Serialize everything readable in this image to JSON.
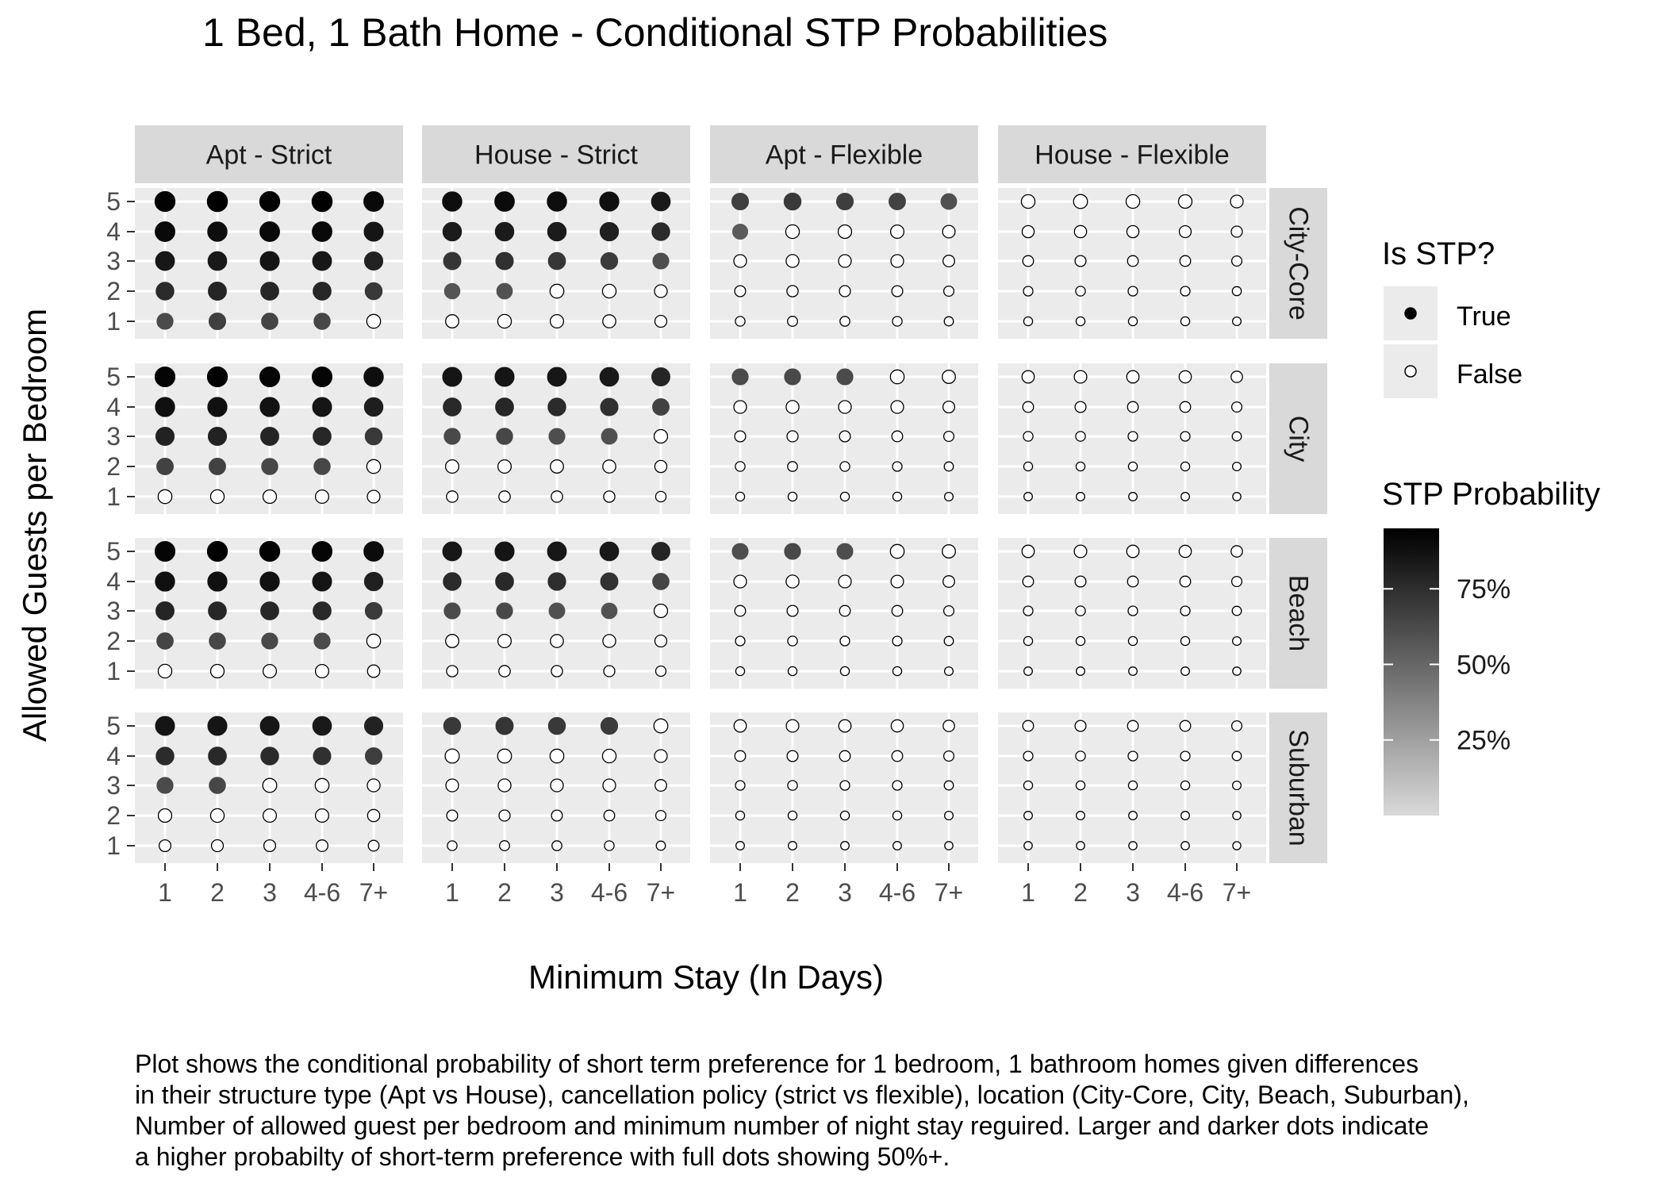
{
  "chart_data": {
    "type": "scatter",
    "title": "1 Bed, 1 Bath Home - Conditional STP Probabilities",
    "xlabel": "Minimum Stay  (In Days)",
    "ylabel": "Allowed Guests per Bedroom",
    "x_categories": [
      "1",
      "2",
      "3",
      "4-6",
      "7+"
    ],
    "y_categories": [
      "1",
      "2",
      "3",
      "4",
      "5"
    ],
    "facet_columns": [
      "Apt - Strict",
      "House - Strict",
      "Apt - Flexible",
      "House - Flexible"
    ],
    "facet_rows": [
      "City-Core",
      "City",
      "Beach",
      "Suburban"
    ],
    "legend_shape": {
      "title": "Is STP?",
      "items": [
        {
          "label": "True",
          "filled": true
        },
        {
          "label": "False",
          "filled": false
        }
      ]
    },
    "legend_color": {
      "title": "STP Probability",
      "ticks": [
        "25%",
        "50%",
        "75%"
      ],
      "tick_values": [
        0.25,
        0.5,
        0.75
      ],
      "range": [
        0.0,
        0.95
      ],
      "low_color": "#d9d9d9",
      "high_color": "#000000"
    },
    "threshold": 0.5,
    "panel_background": "#ebebeb",
    "strip_background": "#d9d9d9",
    "grid": true,
    "legend_position": "right",
    "probabilities": [
      [
        [
          [
            0.62,
            0.67,
            0.65,
            0.64,
            0.46
          ],
          [
            0.76,
            0.79,
            0.78,
            0.78,
            0.7
          ],
          [
            0.85,
            0.84,
            0.86,
            0.85,
            0.8
          ],
          [
            0.91,
            0.89,
            0.91,
            0.91,
            0.86
          ],
          [
            0.94,
            0.95,
            0.94,
            0.95,
            0.91
          ]
        ],
        [
          [
            0.41,
            0.45,
            0.42,
            0.4,
            0.31
          ],
          [
            0.58,
            0.59,
            0.46,
            0.45,
            0.37
          ],
          [
            0.72,
            0.74,
            0.71,
            0.69,
            0.61
          ],
          [
            0.83,
            0.83,
            0.83,
            0.81,
            0.76
          ],
          [
            0.89,
            0.9,
            0.89,
            0.88,
            0.84
          ]
        ],
        [
          [
            0.14,
            0.16,
            0.15,
            0.14,
            0.1
          ],
          [
            0.24,
            0.26,
            0.25,
            0.24,
            0.17
          ],
          [
            0.38,
            0.39,
            0.38,
            0.37,
            0.29
          ],
          [
            0.55,
            0.45,
            0.44,
            0.43,
            0.36
          ],
          [
            0.67,
            0.7,
            0.68,
            0.66,
            0.6
          ]
        ],
        [
          [
            0.07,
            0.08,
            0.08,
            0.07,
            0.05
          ],
          [
            0.13,
            0.14,
            0.13,
            0.12,
            0.09
          ],
          [
            0.23,
            0.24,
            0.23,
            0.22,
            0.17
          ],
          [
            0.33,
            0.34,
            0.33,
            0.31,
            0.25
          ],
          [
            0.45,
            0.47,
            0.45,
            0.44,
            0.38
          ]
        ]
      ],
      [
        [
          [
            0.46,
            0.45,
            0.44,
            0.43,
            0.37
          ],
          [
            0.66,
            0.66,
            0.64,
            0.64,
            0.46
          ],
          [
            0.8,
            0.8,
            0.79,
            0.78,
            0.7
          ],
          [
            0.88,
            0.88,
            0.87,
            0.86,
            0.82
          ],
          [
            0.93,
            0.94,
            0.93,
            0.93,
            0.89
          ]
        ],
        [
          [
            0.27,
            0.28,
            0.27,
            0.26,
            0.2
          ],
          [
            0.42,
            0.43,
            0.41,
            0.4,
            0.32
          ],
          [
            0.63,
            0.64,
            0.61,
            0.6,
            0.44
          ],
          [
            0.77,
            0.78,
            0.76,
            0.74,
            0.66
          ],
          [
            0.86,
            0.86,
            0.85,
            0.84,
            0.79
          ]
        ],
        [
          [
            0.07,
            0.08,
            0.07,
            0.07,
            0.05
          ],
          [
            0.14,
            0.15,
            0.14,
            0.13,
            0.1
          ],
          [
            0.24,
            0.25,
            0.24,
            0.23,
            0.17
          ],
          [
            0.38,
            0.39,
            0.38,
            0.37,
            0.3
          ],
          [
            0.62,
            0.63,
            0.62,
            0.46,
            0.41
          ]
        ],
        [
          [
            0.04,
            0.04,
            0.04,
            0.04,
            0.03
          ],
          [
            0.07,
            0.08,
            0.07,
            0.07,
            0.05
          ],
          [
            0.14,
            0.14,
            0.13,
            0.13,
            0.1
          ],
          [
            0.23,
            0.24,
            0.23,
            0.22,
            0.17
          ],
          [
            0.35,
            0.36,
            0.35,
            0.34,
            0.28
          ]
        ]
      ],
      [
        [
          [
            0.45,
            0.44,
            0.43,
            0.42,
            0.35
          ],
          [
            0.65,
            0.64,
            0.63,
            0.62,
            0.46
          ],
          [
            0.79,
            0.78,
            0.78,
            0.77,
            0.69
          ],
          [
            0.88,
            0.88,
            0.87,
            0.86,
            0.81
          ],
          [
            0.93,
            0.94,
            0.94,
            0.93,
            0.9
          ]
        ],
        [
          [
            0.26,
            0.27,
            0.26,
            0.25,
            0.19
          ],
          [
            0.41,
            0.42,
            0.4,
            0.39,
            0.31
          ],
          [
            0.62,
            0.63,
            0.6,
            0.59,
            0.44
          ],
          [
            0.76,
            0.77,
            0.75,
            0.73,
            0.65
          ],
          [
            0.85,
            0.86,
            0.85,
            0.84,
            0.79
          ]
        ],
        [
          [
            0.07,
            0.08,
            0.07,
            0.07,
            0.05
          ],
          [
            0.13,
            0.14,
            0.13,
            0.13,
            0.1
          ],
          [
            0.23,
            0.24,
            0.23,
            0.22,
            0.17
          ],
          [
            0.37,
            0.39,
            0.38,
            0.36,
            0.29
          ],
          [
            0.61,
            0.63,
            0.61,
            0.46,
            0.41
          ]
        ],
        [
          [
            0.04,
            0.04,
            0.04,
            0.04,
            0.03
          ],
          [
            0.07,
            0.08,
            0.07,
            0.07,
            0.05
          ],
          [
            0.13,
            0.14,
            0.13,
            0.13,
            0.1
          ],
          [
            0.23,
            0.24,
            0.23,
            0.22,
            0.17
          ],
          [
            0.35,
            0.36,
            0.35,
            0.34,
            0.28
          ]
        ]
      ],
      [
        [
          [
            0.3,
            0.31,
            0.3,
            0.29,
            0.23
          ],
          [
            0.44,
            0.45,
            0.43,
            0.42,
            0.34
          ],
          [
            0.62,
            0.64,
            0.47,
            0.46,
            0.39
          ],
          [
            0.76,
            0.77,
            0.76,
            0.74,
            0.68
          ],
          [
            0.86,
            0.86,
            0.85,
            0.84,
            0.8
          ]
        ],
        [
          [
            0.14,
            0.16,
            0.15,
            0.14,
            0.1
          ],
          [
            0.24,
            0.25,
            0.24,
            0.23,
            0.17
          ],
          [
            0.38,
            0.39,
            0.38,
            0.37,
            0.29
          ],
          [
            0.49,
            0.47,
            0.46,
            0.45,
            0.37
          ],
          [
            0.7,
            0.72,
            0.7,
            0.69,
            0.48
          ]
        ],
        [
          [
            0.04,
            0.04,
            0.04,
            0.04,
            0.03
          ],
          [
            0.07,
            0.08,
            0.07,
            0.07,
            0.05
          ],
          [
            0.13,
            0.14,
            0.13,
            0.13,
            0.1
          ],
          [
            0.23,
            0.24,
            0.23,
            0.22,
            0.17
          ],
          [
            0.35,
            0.36,
            0.35,
            0.34,
            0.28
          ]
        ],
        [
          [
            0.02,
            0.02,
            0.02,
            0.02,
            0.01
          ],
          [
            0.04,
            0.04,
            0.04,
            0.04,
            0.03
          ],
          [
            0.07,
            0.08,
            0.07,
            0.07,
            0.05
          ],
          [
            0.13,
            0.14,
            0.13,
            0.13,
            0.1
          ],
          [
            0.23,
            0.24,
            0.23,
            0.22,
            0.17
          ]
        ]
      ]
    ]
  },
  "caption": [
    "Plot shows the conditional probability of short term preference for 1 bedroom, 1 bathroom homes given differences",
    "in their structure type (Apt vs House), cancellation policy (strict vs flexible), location (City-Core, City, Beach, Suburban),",
    "Number of allowed guest per bedroom and minimum number of night stay reguired. Larger and darker dots indicate",
    "a higher probabilty of short-term preference with full dots showing 50%+."
  ]
}
